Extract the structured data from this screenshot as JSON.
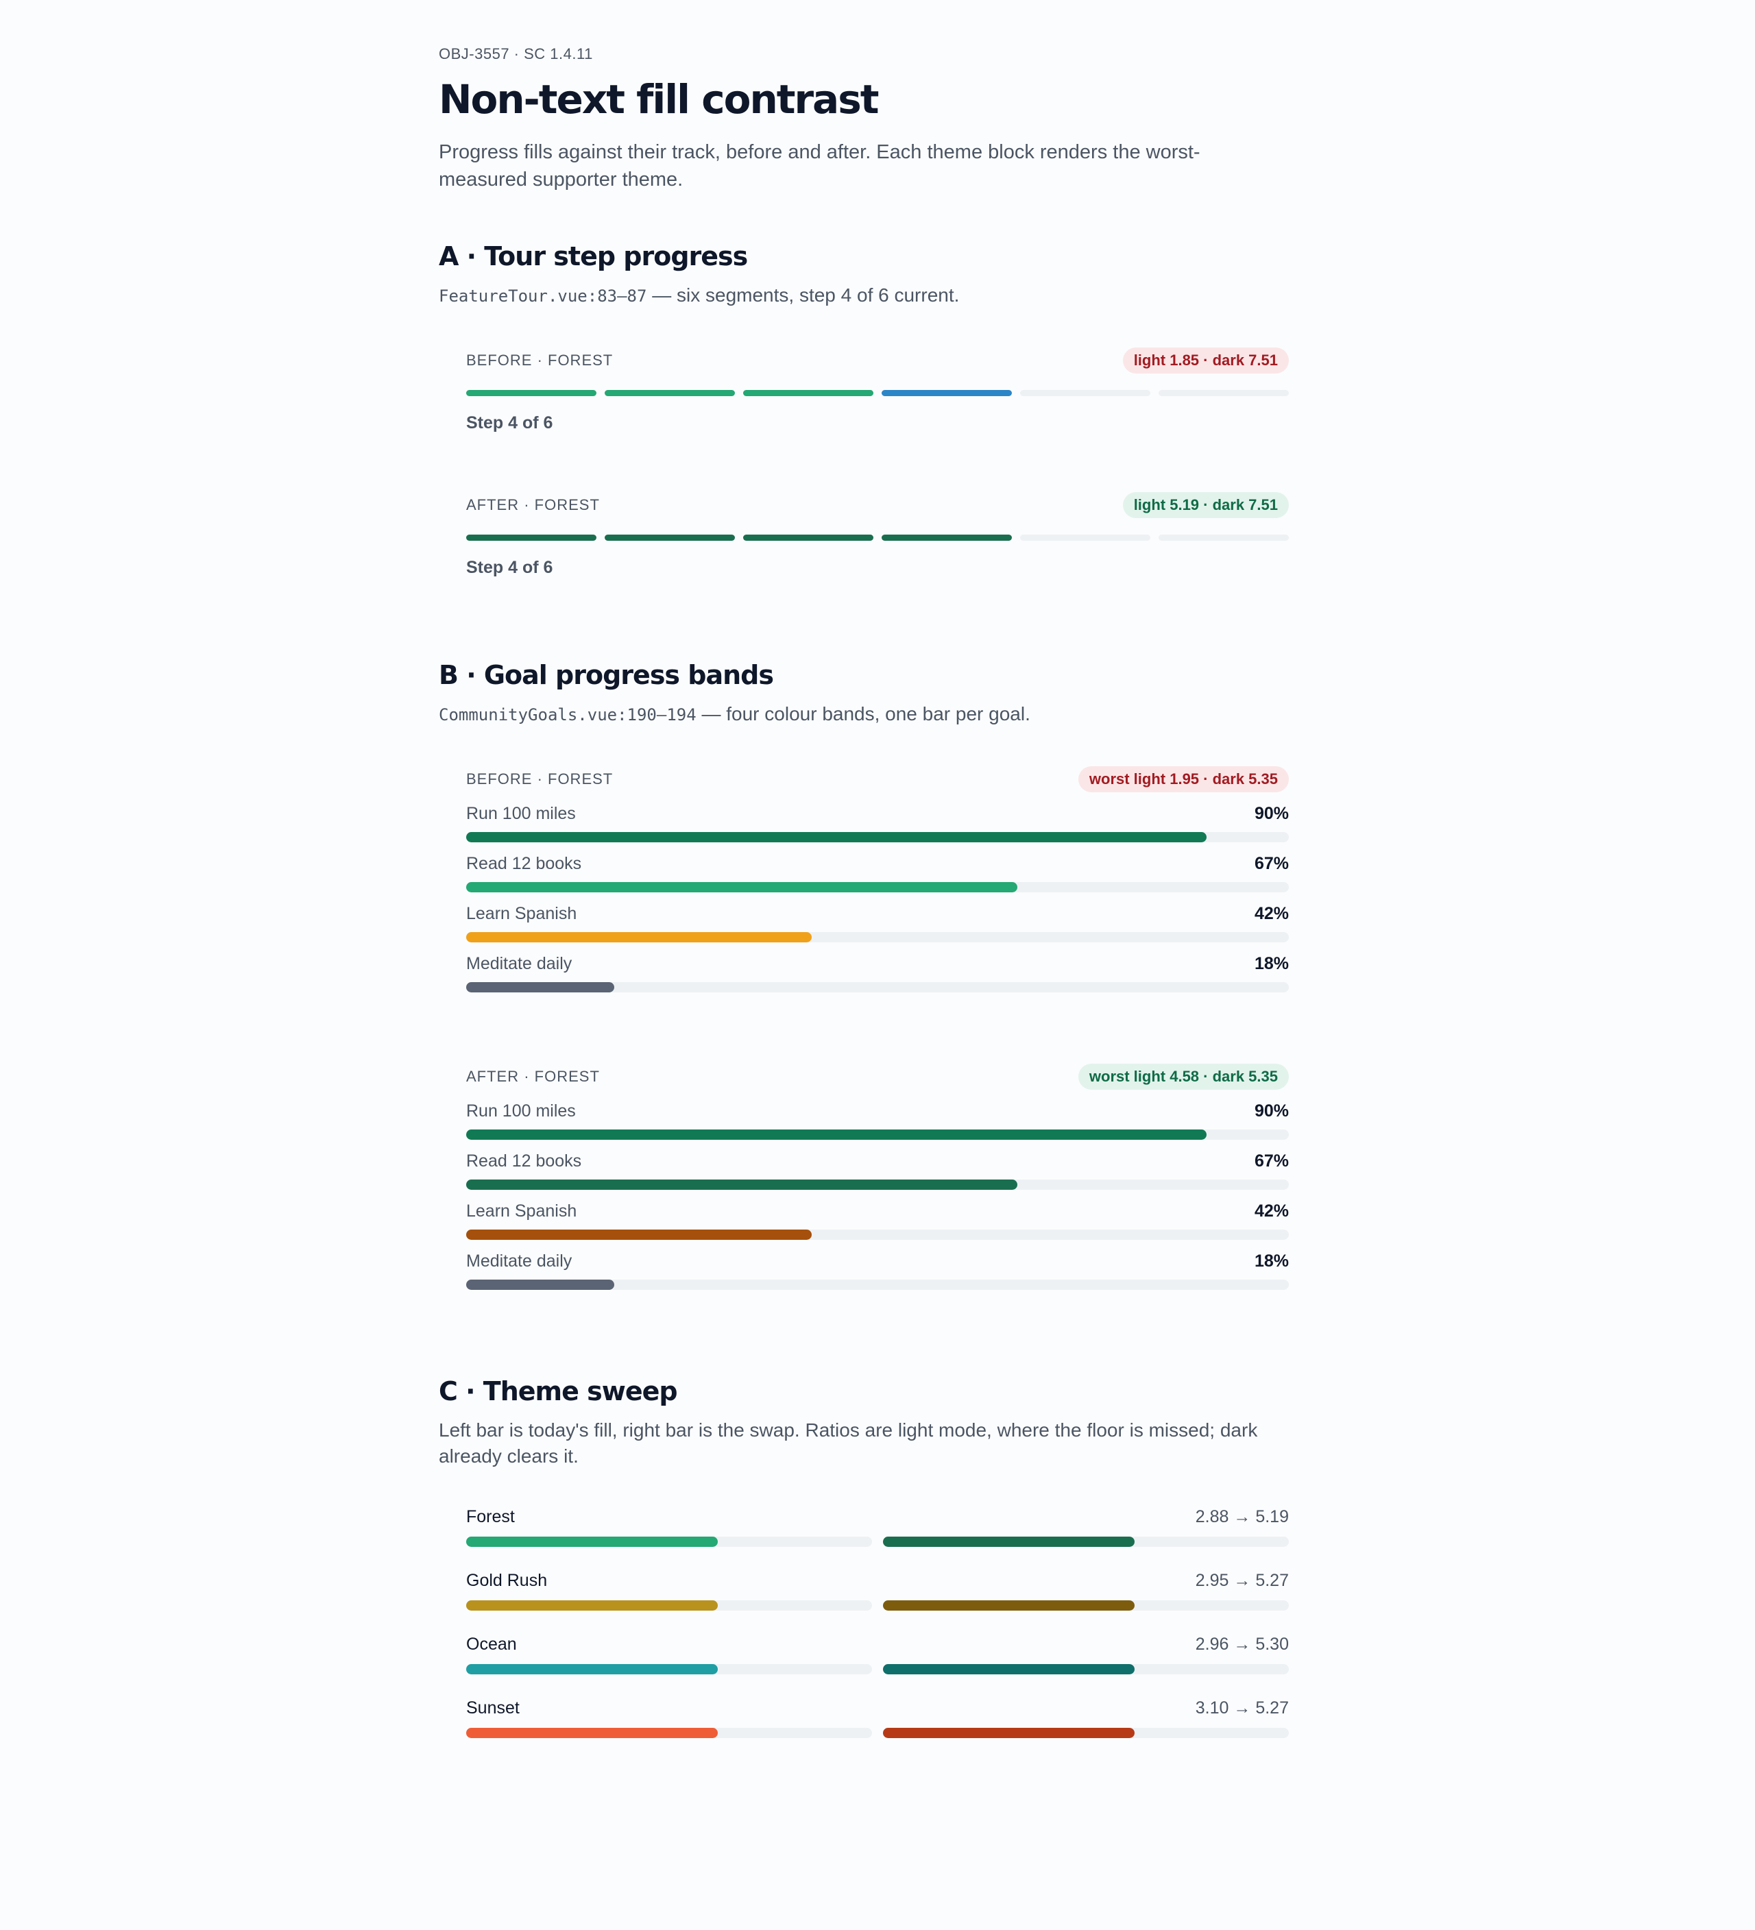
{
  "header": {
    "eyebrow": "OBJ-3557 · SC 1.4.11",
    "title": "Non-text fill contrast",
    "lede": "Progress fills against their track, before and after. Each theme block renders the worst-measured supporter theme."
  },
  "sectionA": {
    "title": "A · Tour step progress",
    "code": "FeatureTour.vue:83–87",
    "desc": " — six segments, step 4 of 6 current.",
    "track_color": "#eef1f4",
    "before": {
      "label": "BEFORE · FOREST",
      "badge": "light 1.85 · dark 7.51",
      "step": "Step 4 of 6",
      "segments": [
        "#24a874",
        "#24a874",
        "#24a874",
        "#2b86c8",
        "#eef1f4",
        "#eef1f4"
      ]
    },
    "after": {
      "label": "AFTER · FOREST",
      "badge": "light 5.19 · dark 7.51",
      "step": "Step 4 of 6",
      "segments": [
        "#1a6e50",
        "#1a6e50",
        "#1a6e50",
        "#1a6e50",
        "#eef1f4",
        "#eef1f4"
      ]
    }
  },
  "sectionB": {
    "title": "B · Goal progress bands",
    "code": "CommunityGoals.vue:190–194",
    "desc": " — four colour bands, one bar per goal.",
    "before": {
      "label": "BEFORE · FOREST",
      "badge": "worst light 1.95 · dark 5.35",
      "goals": [
        {
          "name": "Run 100 miles",
          "pct": "90%",
          "value": 0.9,
          "color": "#117a55"
        },
        {
          "name": "Read 12 books",
          "pct": "67%",
          "value": 0.67,
          "color": "#24a874"
        },
        {
          "name": "Learn Spanish",
          "pct": "42%",
          "value": 0.42,
          "color": "#f0a11a"
        },
        {
          "name": "Meditate daily",
          "pct": "18%",
          "value": 0.18,
          "color": "#5b6474"
        }
      ]
    },
    "after": {
      "label": "AFTER · FOREST",
      "badge": "worst light 4.58 · dark 5.35",
      "goals": [
        {
          "name": "Run 100 miles",
          "pct": "90%",
          "value": 0.9,
          "color": "#117a55"
        },
        {
          "name": "Read 12 books",
          "pct": "67%",
          "value": 0.67,
          "color": "#1a6e50"
        },
        {
          "name": "Learn Spanish",
          "pct": "42%",
          "value": 0.42,
          "color": "#a5500c"
        },
        {
          "name": "Meditate daily",
          "pct": "18%",
          "value": 0.18,
          "color": "#5b6474"
        }
      ]
    }
  },
  "sectionC": {
    "title": "C · Theme sweep",
    "desc": "Left bar is today's fill, right bar is the swap. Ratios are light mode, where the floor is missed; dark already clears it.",
    "fill_value": 0.62,
    "themes": [
      {
        "name": "Forest",
        "ratio": "2.88 → 5.19",
        "before_color": "#24a874",
        "after_color": "#1a6e50"
      },
      {
        "name": "Gold Rush",
        "ratio": "2.95 → 5.27",
        "before_color": "#b8921c",
        "after_color": "#7d5d0d"
      },
      {
        "name": "Ocean",
        "ratio": "2.96 → 5.30",
        "before_color": "#1f9ea3",
        "after_color": "#0f6f6b"
      },
      {
        "name": "Sunset",
        "ratio": "3.10 → 5.27",
        "before_color": "#ef5d36",
        "after_color": "#b63a16"
      }
    ]
  }
}
